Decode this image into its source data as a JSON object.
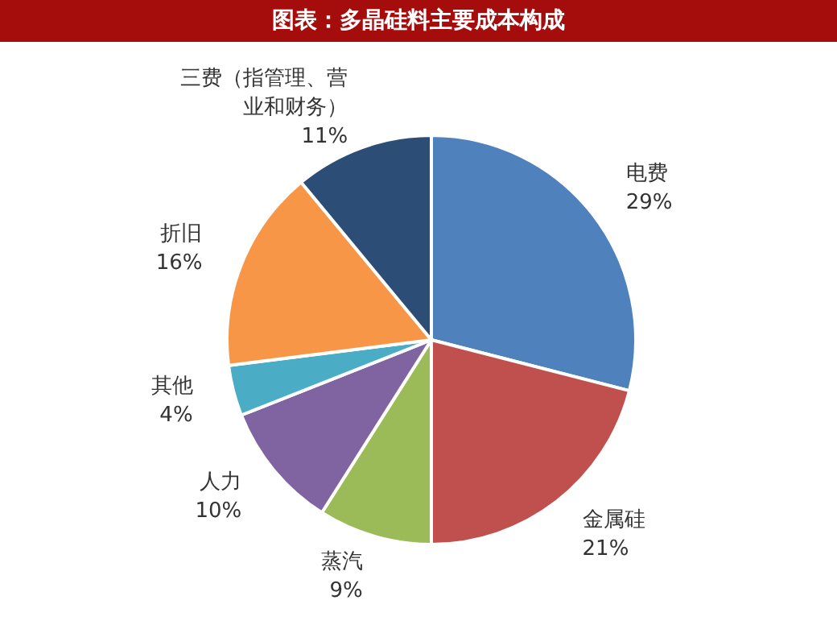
{
  "chart_data": {
    "type": "pie",
    "title": "图表：多晶硅料主要成本构成",
    "categories": [
      "电费",
      "金属硅",
      "蒸汽",
      "人力",
      "其他",
      "折旧",
      "三费（指管理、营业和财务）"
    ],
    "values": [
      29,
      21,
      9,
      10,
      4,
      16,
      11
    ],
    "value_labels": [
      "29%",
      "21%",
      "9%",
      "10%",
      "4%",
      "16%",
      "11%"
    ],
    "colors": [
      "#4f81bd",
      "#c0504d",
      "#9bbb59",
      "#8064a2",
      "#4bacc6",
      "#f79646",
      "#2c4d75"
    ],
    "legend": false
  }
}
